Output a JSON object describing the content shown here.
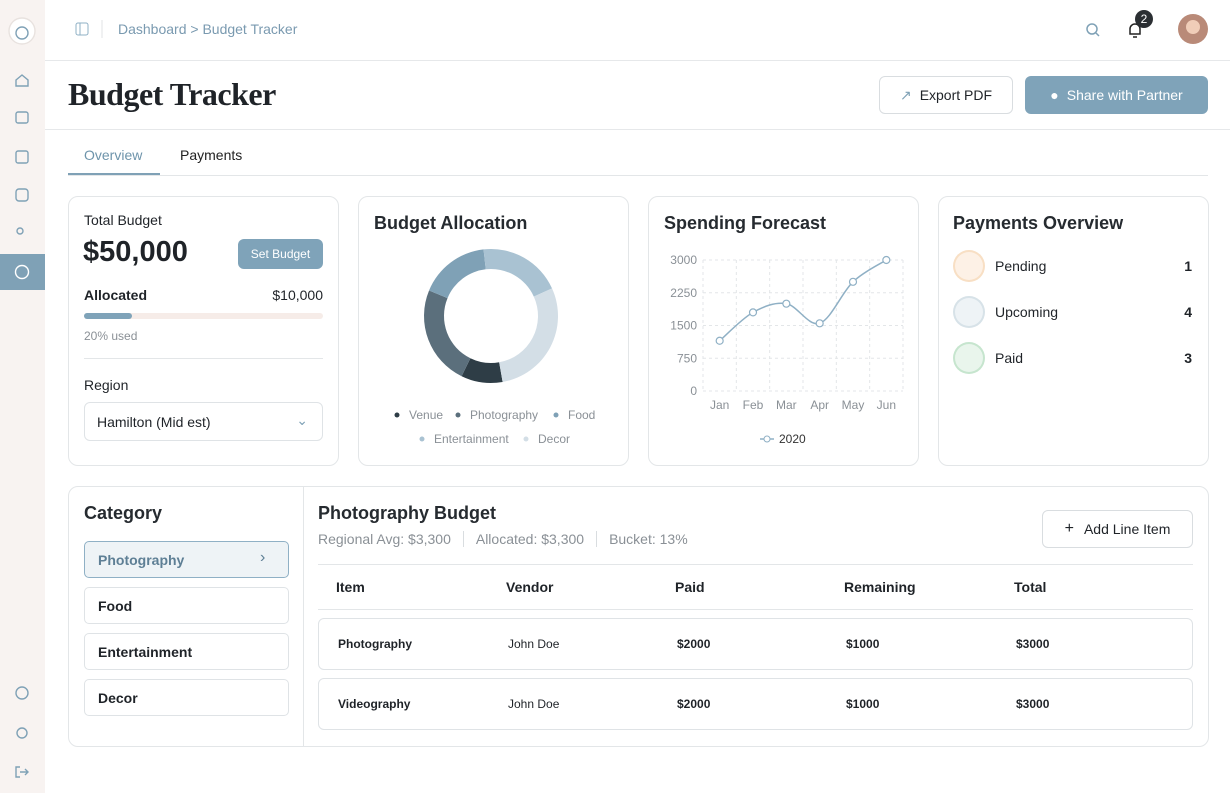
{
  "header": {
    "breadcrumb": "Dashboard > Budget Tracker",
    "notification_count": "2"
  },
  "page": {
    "title": "Budget Tracker",
    "actions": [
      "Export PDF",
      "Share with Partner"
    ]
  },
  "tabs": [
    "Overview",
    "Payments"
  ],
  "total_budget": {
    "label": "Total Budget",
    "amount": "$50,000",
    "button": "Set Budget",
    "allocated_label": "Allocated",
    "allocated_amount": "$10,000",
    "used_percent": 20,
    "used_label": "20% used",
    "region_label": "Region",
    "region_value": "Hamilton (Mid est)"
  },
  "chart_data": [
    {
      "type": "donut",
      "title": "Budget Allocation",
      "categories": [
        "Venue",
        "Photography",
        "Food",
        "Entertainment",
        "Decor"
      ],
      "values": [
        10,
        24,
        17,
        20,
        29
      ],
      "colors": [
        "#2e3d46",
        "#5b6f7c",
        "#7fa1b6",
        "#a9c2d2",
        "#d3dee6"
      ]
    },
    {
      "type": "line",
      "title": "Spending Forecast",
      "x": [
        "Jan",
        "Feb",
        "Mar",
        "Apr",
        "May",
        "Jun"
      ],
      "series": [
        {
          "name": "2020",
          "color": "#8fb0c5",
          "values": [
            1150,
            1800,
            2000,
            1550,
            2500,
            3000
          ]
        }
      ],
      "ylim": [
        0,
        3000
      ],
      "yticks": [
        0,
        750,
        1500,
        2250,
        3000
      ],
      "grid": true
    }
  ],
  "payments_overview": {
    "title": "Payments Overview",
    "items": [
      {
        "label": "Pending",
        "count": "1"
      },
      {
        "label": "Upcoming",
        "count": "4"
      },
      {
        "label": "Paid",
        "count": "3"
      }
    ]
  },
  "category": {
    "title": "Category",
    "items": [
      "Photography",
      "Food",
      "Entertainment",
      "Decor"
    ]
  },
  "detail": {
    "title": "Photography Budget",
    "stats": [
      "Regional Avg: $3,300",
      "Allocated: $3,300",
      "Bucket: 13%"
    ],
    "button": "Add Line Item",
    "table": {
      "columns": [
        "Item",
        "Vendor",
        "Paid",
        "Remaining",
        "Total"
      ],
      "rows": [
        [
          "Photography",
          "John Doe",
          "$2000",
          "$1000",
          "$3000"
        ],
        [
          "Videography",
          "John Doe",
          "$2000",
          "$1000",
          "$3000"
        ]
      ]
    }
  }
}
